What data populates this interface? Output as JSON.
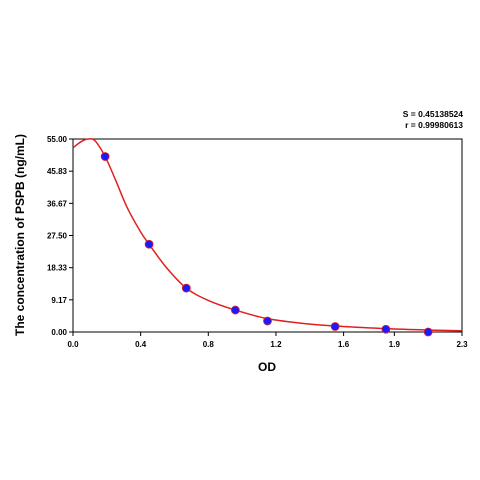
{
  "chart_data": {
    "type": "scatter",
    "title": "",
    "xlabel": "OD",
    "ylabel": "The concentration of PSPB (ng/mL)",
    "xlim": [
      0,
      2.3
    ],
    "ylim": [
      0,
      55
    ],
    "x_ticks": [
      0.0,
      0.4,
      0.8,
      1.2,
      1.6,
      1.9,
      2.3
    ],
    "x_tick_labels": [
      "0.0",
      "0.4",
      "0.8",
      "1.2",
      "1.6",
      "1.9",
      "2.3"
    ],
    "y_ticks": [
      0,
      9.17,
      18.33,
      27.5,
      36.67,
      45.83,
      55
    ],
    "y_tick_labels": [
      "0.00",
      "9.17",
      "18.33",
      "27.50",
      "36.67",
      "45.83",
      "55.00"
    ],
    "grid": false,
    "legend": "none",
    "annotations": [
      "S = 0.45138524",
      "r = 0.99980613"
    ],
    "series": [
      {
        "points": [
          {
            "x": 0.19,
            "y": 50.0
          },
          {
            "x": 0.45,
            "y": 25.0
          },
          {
            "x": 0.67,
            "y": 12.5
          },
          {
            "x": 0.96,
            "y": 6.25
          },
          {
            "x": 1.15,
            "y": 3.13
          },
          {
            "x": 1.55,
            "y": 1.56
          },
          {
            "x": 1.85,
            "y": 0.78
          },
          {
            "x": 2.1,
            "y": 0.0
          }
        ],
        "marker_color": "#1a1aff",
        "fit_color": "#e02020"
      }
    ],
    "fit_curve": [
      [
        0.0,
        52.5
      ],
      [
        0.05,
        54.3
      ],
      [
        0.09,
        55.0
      ],
      [
        0.13,
        54.5
      ],
      [
        0.19,
        50.0
      ],
      [
        0.25,
        43.5
      ],
      [
        0.32,
        35.5
      ],
      [
        0.4,
        28.5
      ],
      [
        0.45,
        25.0
      ],
      [
        0.55,
        18.5
      ],
      [
        0.67,
        12.5
      ],
      [
        0.8,
        9.0
      ],
      [
        0.96,
        6.25
      ],
      [
        1.15,
        3.8
      ],
      [
        1.35,
        2.5
      ],
      [
        1.55,
        1.7
      ],
      [
        1.85,
        0.95
      ],
      [
        2.1,
        0.55
      ],
      [
        2.3,
        0.35
      ]
    ]
  }
}
